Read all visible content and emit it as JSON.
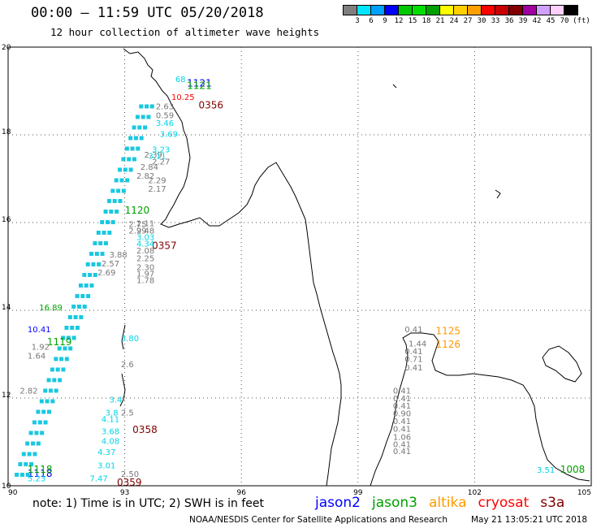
{
  "header": {
    "title": "00:00 – 11:59 UTC 05/20/2018",
    "subtitle": "12 hour collection of altimeter wave heights"
  },
  "colorbar": {
    "colors": [
      "#7f7f7f",
      "#00e5ff",
      "#00a0ff",
      "#0000ff",
      "#00c800",
      "#00e000",
      "#00a000",
      "#ffff00",
      "#ffd000",
      "#ffa000",
      "#ff0000",
      "#c80000",
      "#800000",
      "#a000a0",
      "#d0a0ff",
      "#ffd0ff",
      "#000000"
    ],
    "ticks": [
      "3",
      "6",
      "9",
      "12",
      "15",
      "18",
      "21",
      "24",
      "27",
      "30",
      "33",
      "36",
      "39",
      "42",
      "45",
      "70",
      "(ft)"
    ]
  },
  "chart_data": {
    "type": "scatter",
    "xlim": [
      90,
      105
    ],
    "ylim": [
      10,
      20
    ],
    "x_ticks": [
      "90",
      "93",
      "96",
      "99",
      "102",
      "105"
    ],
    "y_ticks": [
      "10",
      "12",
      "14",
      "16",
      "18",
      "20"
    ],
    "grid": "dotted",
    "series": [
      {
        "name": "jason2",
        "color": "#0000ff",
        "points": [
          {
            "x": 94.6,
            "y": 19.1,
            "label": "1121"
          },
          {
            "x": 90.5,
            "y": 13.5,
            "label": "10.41"
          },
          {
            "x": 90.5,
            "y": 10.2,
            "label": "1118"
          }
        ]
      },
      {
        "name": "jason3",
        "color": "#00a000",
        "points": [
          {
            "x": 94.6,
            "y": 19.05,
            "label": "1121"
          },
          {
            "x": 93.0,
            "y": 16.2,
            "label": "1120"
          },
          {
            "x": 90.8,
            "y": 14.0,
            "label": "16.89"
          },
          {
            "x": 91.0,
            "y": 13.2,
            "label": "1119"
          },
          {
            "x": 90.5,
            "y": 10.3,
            "label": "1118"
          },
          {
            "x": 104.2,
            "y": 10.3,
            "label": "1008"
          }
        ]
      },
      {
        "name": "altika",
        "color": "#ff9900",
        "points": [
          {
            "x": 101.0,
            "y": 13.45,
            "label": "1125"
          },
          {
            "x": 101.0,
            "y": 13.15,
            "label": "1126"
          }
        ]
      },
      {
        "name": "cryosat",
        "color": "#ff0000",
        "points": [
          {
            "x": 94.2,
            "y": 18.8,
            "label": "10.25"
          }
        ]
      },
      {
        "name": "s3a",
        "color": "#800000",
        "points": [
          {
            "x": 94.9,
            "y": 18.6,
            "label": "0356"
          },
          {
            "x": 93.7,
            "y": 15.4,
            "label": "0357"
          },
          {
            "x": 93.2,
            "y": 11.2,
            "label": "0358"
          },
          {
            "x": 92.8,
            "y": 10.0,
            "label": "0359"
          }
        ]
      },
      {
        "name": "swh_gray",
        "color": "#777777",
        "points": [
          {
            "x": 93.8,
            "y": 18.58,
            "label": "2.63"
          },
          {
            "x": 93.8,
            "y": 18.38,
            "label": "0.59"
          },
          {
            "x": 93.5,
            "y": 17.48,
            "label": "2.39"
          },
          {
            "x": 93.7,
            "y": 17.32,
            "label": "2.27"
          },
          {
            "x": 93.4,
            "y": 17.2,
            "label": "2.84"
          },
          {
            "x": 93.3,
            "y": 17.0,
            "label": "2.82"
          },
          {
            "x": 93.6,
            "y": 16.9,
            "label": "2.29"
          },
          {
            "x": 93.6,
            "y": 16.7,
            "label": "2.17"
          },
          {
            "x": 93.1,
            "y": 15.9,
            "label": "2.75"
          },
          {
            "x": 93.3,
            "y": 15.92,
            "label": "2.11"
          },
          {
            "x": 93.1,
            "y": 15.75,
            "label": "2.99"
          },
          {
            "x": 93.3,
            "y": 15.75,
            "label": "2.48"
          },
          {
            "x": 93.3,
            "y": 15.3,
            "label": "2.08"
          },
          {
            "x": 93.3,
            "y": 15.12,
            "label": "2.25"
          },
          {
            "x": 92.6,
            "y": 15.2,
            "label": "3.88"
          },
          {
            "x": 92.4,
            "y": 15.0,
            "label": "2.57"
          },
          {
            "x": 92.3,
            "y": 14.8,
            "label": "2.69"
          },
          {
            "x": 93.3,
            "y": 14.92,
            "label": "2.30"
          },
          {
            "x": 93.3,
            "y": 14.77,
            "label": "1.97"
          },
          {
            "x": 93.3,
            "y": 14.62,
            "label": "1.78"
          },
          {
            "x": 90.6,
            "y": 13.1,
            "label": "1.92"
          },
          {
            "x": 90.5,
            "y": 12.9,
            "label": "1.64"
          },
          {
            "x": 90.3,
            "y": 12.1,
            "label": "2.82"
          },
          {
            "x": 92.9,
            "y": 12.7,
            "label": "2.6"
          },
          {
            "x": 92.9,
            "y": 11.6,
            "label": "2.5"
          },
          {
            "x": 92.9,
            "y": 10.2,
            "label": "2.50"
          },
          {
            "x": 100.2,
            "y": 13.5,
            "label": "0.41"
          },
          {
            "x": 100.3,
            "y": 13.18,
            "label": "1.44"
          },
          {
            "x": 100.2,
            "y": 13.0,
            "label": "0.41"
          },
          {
            "x": 100.2,
            "y": 12.82,
            "label": "0.71"
          },
          {
            "x": 100.2,
            "y": 12.63,
            "label": "0.41"
          },
          {
            "x": 99.9,
            "y": 12.1,
            "label": "0.41"
          },
          {
            "x": 99.9,
            "y": 11.93,
            "label": "0.41"
          },
          {
            "x": 99.9,
            "y": 11.76,
            "label": "0.41"
          },
          {
            "x": 99.9,
            "y": 11.58,
            "label": "0.90"
          },
          {
            "x": 99.9,
            "y": 11.41,
            "label": "0.41"
          },
          {
            "x": 99.9,
            "y": 11.23,
            "label": "0.41"
          },
          {
            "x": 99.9,
            "y": 11.05,
            "label": "1.06"
          },
          {
            "x": 99.9,
            "y": 10.88,
            "label": "0.41"
          },
          {
            "x": 99.9,
            "y": 10.72,
            "label": "0.41"
          }
        ]
      },
      {
        "name": "swh_cyan",
        "color": "#00d5e5",
        "points": [
          {
            "x": 94.3,
            "y": 19.2,
            "label": "68"
          },
          {
            "x": 93.8,
            "y": 18.2,
            "label": "3.46"
          },
          {
            "x": 93.9,
            "y": 17.95,
            "label": "3.69"
          },
          {
            "x": 93.7,
            "y": 17.6,
            "label": "3.23"
          },
          {
            "x": 93.6,
            "y": 17.45,
            "label": "3.11"
          },
          {
            "x": 93.3,
            "y": 15.6,
            "label": "3.03"
          },
          {
            "x": 93.3,
            "y": 15.45,
            "label": "4.34"
          },
          {
            "x": 92.9,
            "y": 13.3,
            "label": "3.80"
          },
          {
            "x": 92.6,
            "y": 11.9,
            "label": "3.4"
          },
          {
            "x": 92.5,
            "y": 11.6,
            "label": "3.8"
          },
          {
            "x": 92.4,
            "y": 11.45,
            "label": "4.11"
          },
          {
            "x": 92.4,
            "y": 11.18,
            "label": "3.68"
          },
          {
            "x": 92.4,
            "y": 10.95,
            "label": "4.08"
          },
          {
            "x": 92.3,
            "y": 10.7,
            "label": "4.37"
          },
          {
            "x": 92.3,
            "y": 10.4,
            "label": "3.01"
          },
          {
            "x": 92.1,
            "y": 10.1,
            "label": "7.47"
          },
          {
            "x": 90.5,
            "y": 10.1,
            "label": "5.23"
          },
          {
            "x": 103.6,
            "y": 10.3,
            "label": "3.51"
          }
        ]
      }
    ]
  },
  "footer": {
    "note": "note: 1) Time is in UTC; 2) SWH is in feet",
    "legend": [
      {
        "label": "jason2",
        "color": "#0000ff"
      },
      {
        "label": "jason3",
        "color": "#00a000"
      },
      {
        "label": "altika",
        "color": "#ff9900"
      },
      {
        "label": "cryosat",
        "color": "#ff0000"
      },
      {
        "label": "s3a",
        "color": "#800000"
      }
    ],
    "credit": "NOAA/NESDIS Center for Satellite Applications and Research",
    "timestamp": "May 21 13:05:21 UTC 2018"
  }
}
